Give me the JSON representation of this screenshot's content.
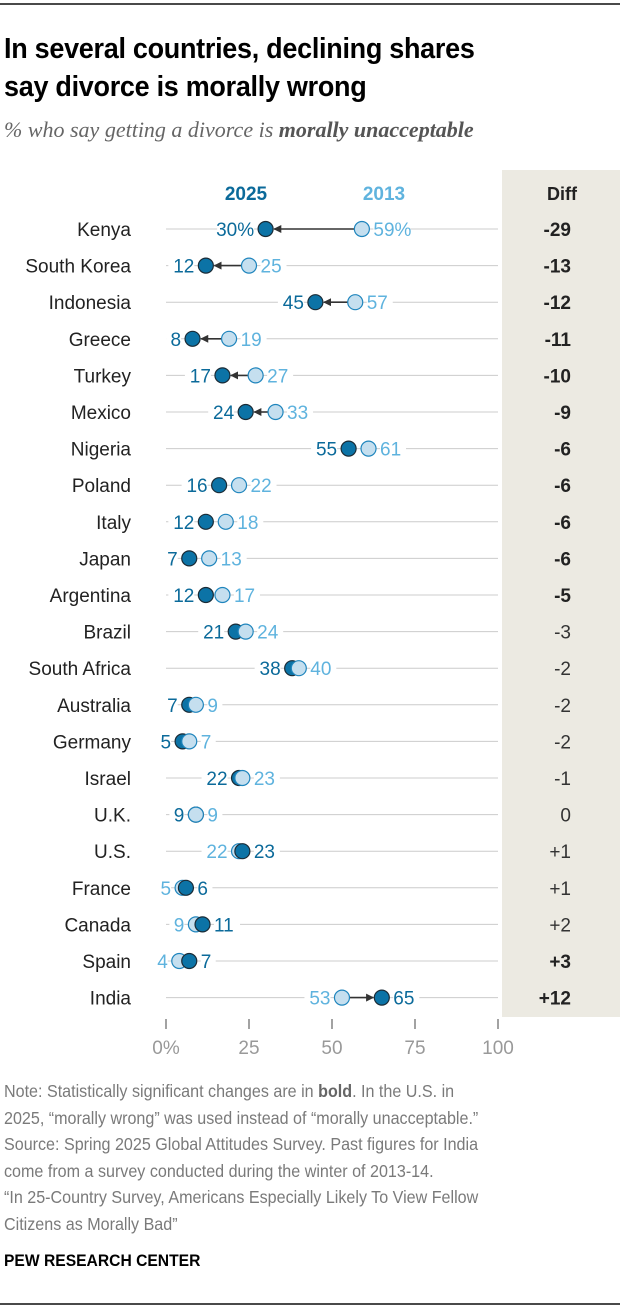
{
  "header": {
    "title_line1": "In several countries, declining shares",
    "title_line2": "say divorce is morally wrong",
    "subtitle_prefix": "% who say getting a divorce is ",
    "subtitle_bold": "morally unacceptable"
  },
  "colors": {
    "series_2025": "#0b6a9a",
    "series_2025_dot": "#0c73a6",
    "series_2013": "#5fb3de",
    "series_2013_dot": "#c5dfef",
    "grid": "#cccccc",
    "arrow": "#333333",
    "diff_bg": "#eceae2"
  },
  "chart_data": {
    "type": "dot-plot",
    "title": "In several countries, declining shares say divorce is morally wrong",
    "subtitle": "% who say getting a divorce is morally unacceptable",
    "xlim": [
      0,
      100
    ],
    "x_ticks": [
      "0%",
      "25",
      "50",
      "75",
      "100"
    ],
    "x_tick_values": [
      0,
      25,
      50,
      75,
      100
    ],
    "legend": [
      "2025",
      "2013"
    ],
    "diff_header": "Diff",
    "categories": [
      "Kenya",
      "South Korea",
      "Indonesia",
      "Greece",
      "Turkey",
      "Mexico",
      "Nigeria",
      "Poland",
      "Italy",
      "Japan",
      "Argentina",
      "Brazil",
      "South Africa",
      "Australia",
      "Germany",
      "Israel",
      "U.K.",
      "U.S.",
      "France",
      "Canada",
      "Spain",
      "India"
    ],
    "series": [
      {
        "name": "2025",
        "values": [
          30,
          12,
          45,
          8,
          17,
          24,
          55,
          16,
          12,
          7,
          12,
          21,
          38,
          7,
          5,
          22,
          9,
          23,
          6,
          11,
          7,
          65
        ]
      },
      {
        "name": "2013",
        "values": [
          59,
          25,
          57,
          19,
          27,
          33,
          61,
          22,
          18,
          13,
          17,
          24,
          40,
          9,
          7,
          23,
          9,
          22,
          5,
          9,
          4,
          53
        ]
      }
    ],
    "labels_2025": [
      "30%",
      "12",
      "45",
      "8",
      "17",
      "24",
      "55",
      "16",
      "12",
      "7",
      "12",
      "21",
      "38",
      "7",
      "5",
      "22",
      "9",
      "23",
      "6",
      "11",
      "7",
      "65"
    ],
    "labels_2013": [
      "59%",
      "25",
      "57",
      "19",
      "27",
      "33",
      "61",
      "22",
      "18",
      "13",
      "17",
      "24",
      "40",
      "9",
      "7",
      "23",
      "9",
      "22",
      "5",
      "9",
      "4",
      "53"
    ],
    "diff": [
      "-29",
      "-13",
      "-12",
      "-11",
      "-10",
      "-9",
      "-6",
      "-6",
      "-6",
      "-6",
      "-5",
      "-3",
      "-2",
      "-2",
      "-2",
      "-1",
      "0",
      "+1",
      "+1",
      "+2",
      "+3",
      "+12"
    ],
    "significant": [
      true,
      true,
      true,
      true,
      true,
      true,
      true,
      true,
      true,
      true,
      true,
      false,
      false,
      false,
      false,
      false,
      false,
      false,
      false,
      false,
      true,
      true
    ],
    "arrow": [
      true,
      true,
      true,
      true,
      true,
      true,
      false,
      false,
      false,
      false,
      false,
      false,
      false,
      false,
      false,
      false,
      false,
      false,
      false,
      false,
      false,
      true
    ]
  },
  "notes": {
    "line1_pre": "Note: Statistically significant changes are in ",
    "line1_bold": "bold",
    "line1_post": ". In the U.S. in",
    "line2": "2025, “morally wrong” was used instead of “morally unacceptable.”",
    "line3": "Source: Spring 2025 Global Attitudes Survey. Past figures for India",
    "line4": "come from a survey conducted during the winter of 2013-14.",
    "line5": "“In 25-Country Survey, Americans Especially Likely To View Fellow",
    "line6": "Citizens as Morally Bad”"
  },
  "footer": {
    "org": "PEW RESEARCH CENTER"
  }
}
